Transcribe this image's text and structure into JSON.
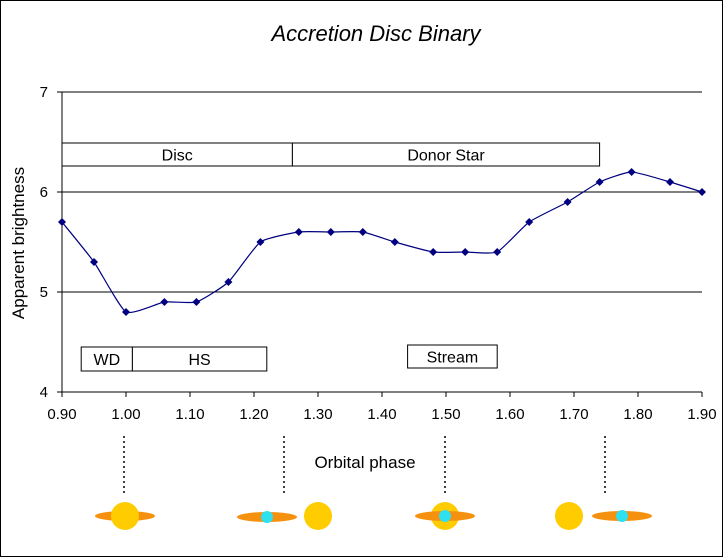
{
  "chart_data": {
    "type": "line",
    "title": "Accretion Disc Binary",
    "xlabel": "Orbital phase",
    "ylabel": "Apparent brightness",
    "xlim": [
      0.9,
      1.9
    ],
    "ylim": [
      4,
      7
    ],
    "x_ticks": [
      "0.90",
      "1.00",
      "1.10",
      "1.20",
      "1.30",
      "1.40",
      "1.50",
      "1.60",
      "1.70",
      "1.80",
      "1.90"
    ],
    "y_ticks": [
      "4",
      "5",
      "6",
      "7"
    ],
    "grid": "horizontal major lines at 5, 6, 7",
    "series": [
      {
        "x": [
          0.9,
          0.95,
          1.0,
          1.06,
          1.11,
          1.16,
          1.21,
          1.27,
          1.32,
          1.37,
          1.42,
          1.48,
          1.53,
          1.58,
          1.63,
          1.69,
          1.74,
          1.79,
          1.85,
          1.9
        ],
        "y": [
          5.7,
          5.3,
          4.8,
          4.9,
          4.9,
          5.1,
          5.5,
          5.6,
          5.6,
          5.6,
          5.5,
          5.4,
          5.4,
          5.4,
          5.7,
          5.9,
          6.1,
          6.2,
          6.1,
          6.0
        ],
        "color": "#000080"
      }
    ],
    "annotations": [
      {
        "label": "Disc",
        "x_start": 0.9,
        "x_end": 1.26,
        "y_top": 6.49,
        "y_bottom": 6.26
      },
      {
        "label": "Donor Star",
        "x_start": 1.26,
        "x_end": 1.74,
        "y_top": 6.49,
        "y_bottom": 6.26
      },
      {
        "label": "WD",
        "x_start": 0.93,
        "x_end": 1.01,
        "y_top": 4.45,
        "y_bottom": 4.21
      },
      {
        "label": "HS",
        "x_start": 1.01,
        "x_end": 1.22,
        "y_top": 4.45,
        "y_bottom": 4.21
      },
      {
        "label": "Stream",
        "x_start": 1.44,
        "x_end": 1.58,
        "y_top": 4.47,
        "y_bottom": 4.24
      }
    ],
    "schematic_colors": {
      "star": "#FFCC00",
      "disc": "#F5910F",
      "white_dwarf": "#2EE0F0"
    }
  }
}
